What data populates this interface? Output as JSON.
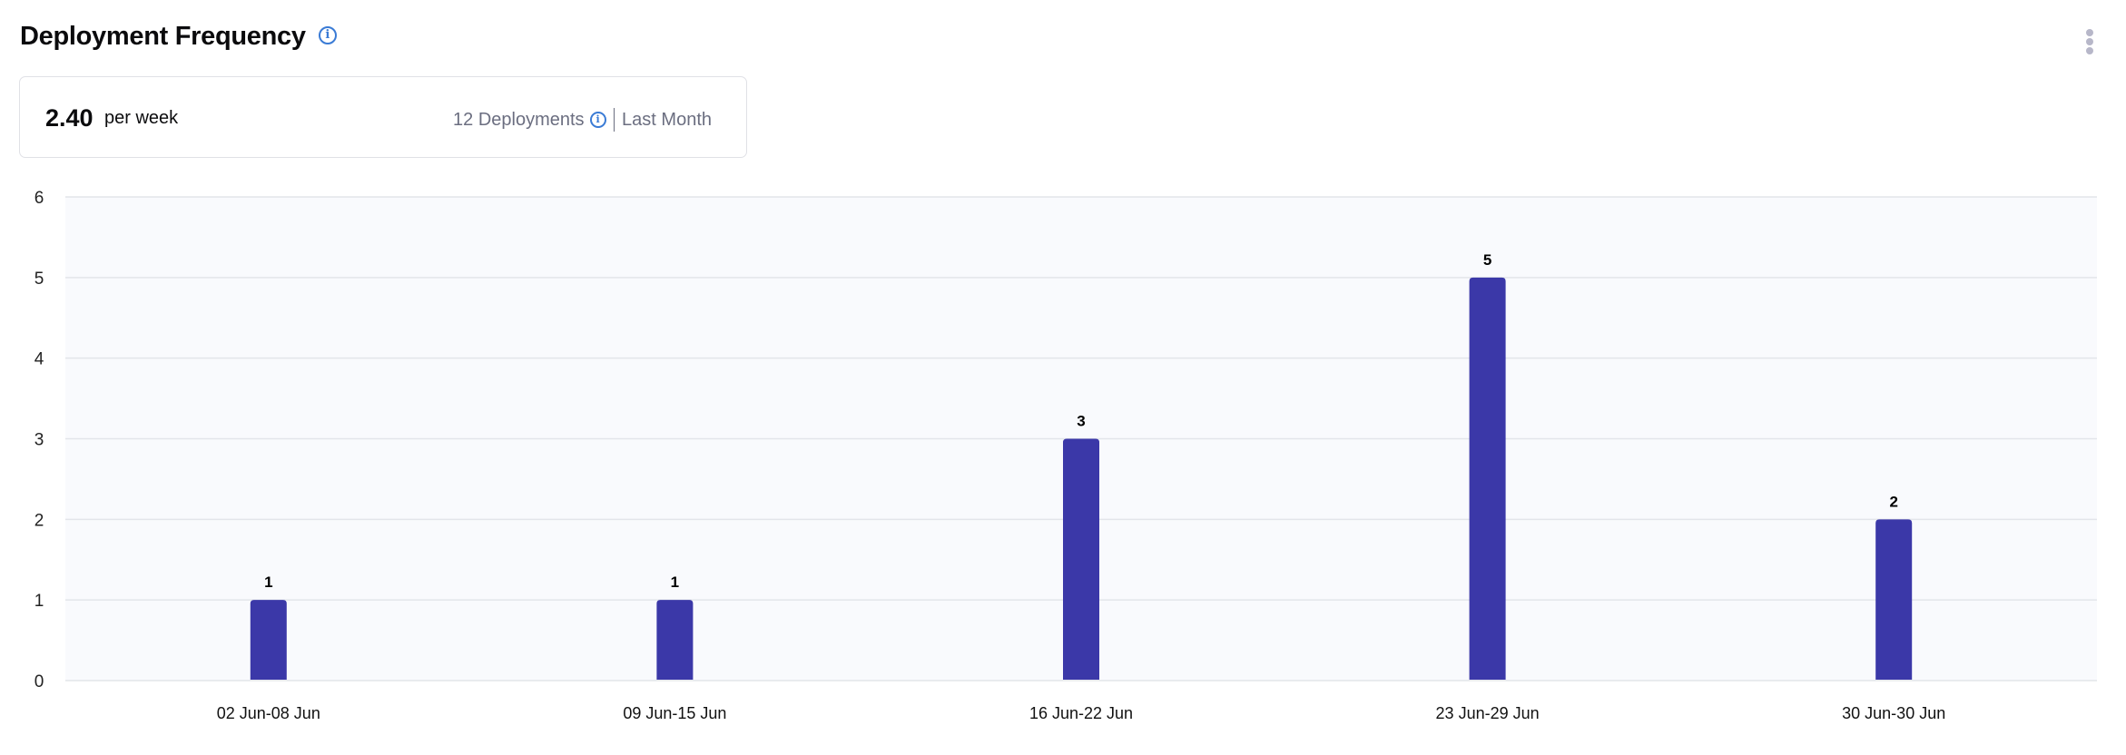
{
  "header": {
    "title": "Deployment Frequency",
    "info_icon": "info-circle-icon",
    "menu_icon": "kebab-menu-icon"
  },
  "summary": {
    "value": "2.40",
    "unit": "per week",
    "deployments": "12 Deployments",
    "period": "Last Month"
  },
  "colors": {
    "bar": "#3b38a8",
    "plot_bg": "#f9fafd",
    "grid": "#e3e5ea",
    "info": "#3a7bd5"
  },
  "chart_data": {
    "type": "bar",
    "categories": [
      "02 Jun-08 Jun",
      "09 Jun-15 Jun",
      "16 Jun-22 Jun",
      "23 Jun-29 Jun",
      "30 Jun-30 Jun"
    ],
    "values": [
      1,
      1,
      3,
      5,
      2
    ],
    "ylim": [
      0,
      6
    ],
    "yticks": [
      0,
      1,
      2,
      3,
      4,
      5,
      6
    ],
    "grid": true,
    "data_labels": true,
    "title": "",
    "xlabel": "",
    "ylabel": ""
  }
}
